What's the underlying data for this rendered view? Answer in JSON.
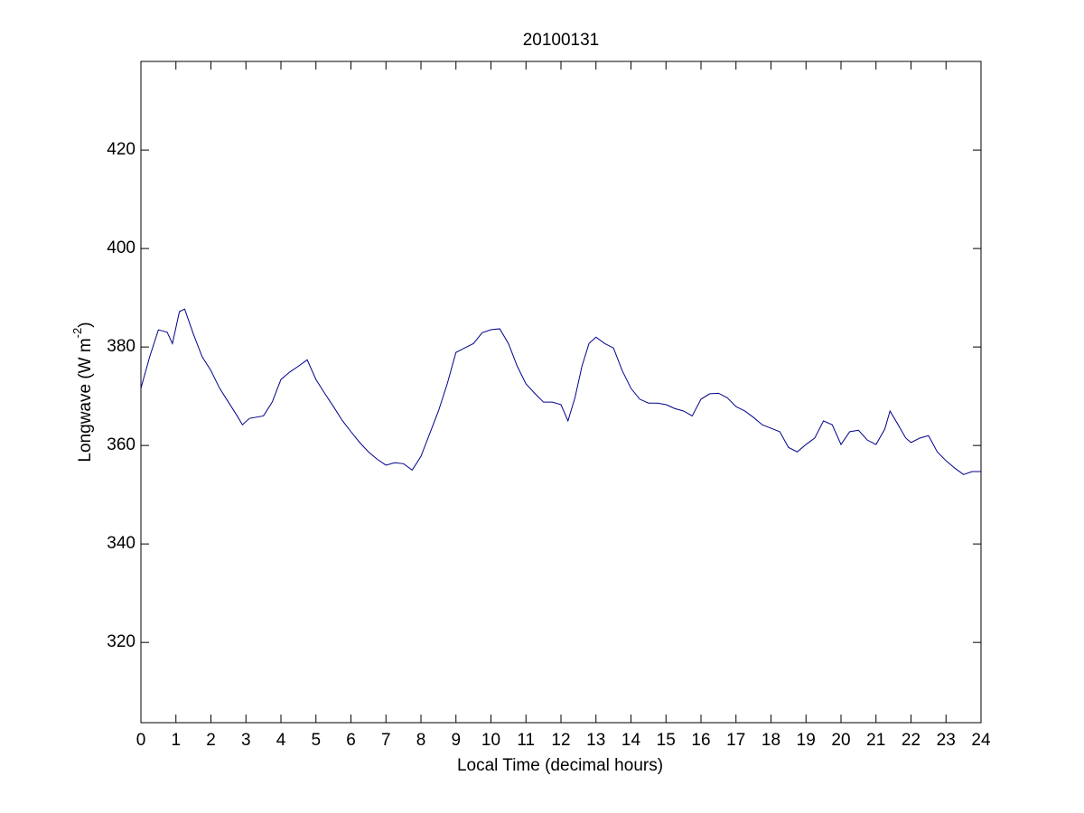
{
  "chart_data": {
    "type": "line",
    "title": "20100131",
    "xlabel": "Local Time (decimal hours)",
    "ylabel_parts": [
      "Longwave (W m",
      "-2",
      ")"
    ],
    "x": [
      0,
      0.25,
      0.5,
      0.75,
      0.9,
      1.1,
      1.25,
      1.5,
      1.75,
      2.0,
      2.25,
      2.5,
      2.75,
      2.9,
      3.1,
      3.5,
      3.75,
      4.0,
      4.25,
      4.5,
      4.75,
      5.0,
      5.25,
      5.5,
      5.75,
      6.0,
      6.25,
      6.5,
      6.75,
      7.0,
      7.25,
      7.5,
      7.75,
      8.0,
      8.25,
      8.5,
      8.75,
      9.0,
      9.25,
      9.5,
      9.75,
      10.0,
      10.25,
      10.5,
      10.75,
      11.0,
      11.25,
      11.5,
      11.75,
      12.0,
      12.2,
      12.4,
      12.6,
      12.8,
      13.0,
      13.25,
      13.5,
      13.75,
      14.0,
      14.25,
      14.5,
      14.75,
      15.0,
      15.25,
      15.5,
      15.75,
      16.0,
      16.25,
      16.5,
      16.75,
      17.0,
      17.25,
      17.5,
      17.75,
      18.0,
      18.25,
      18.5,
      18.75,
      19.0,
      19.25,
      19.5,
      19.75,
      20.0,
      20.25,
      20.5,
      20.75,
      21.0,
      21.25,
      21.4,
      21.6,
      21.85,
      22.0,
      22.25,
      22.5,
      22.75,
      23.0,
      23.25,
      23.5,
      23.75,
      24.0
    ],
    "series": [
      {
        "color": "#00008B",
        "values": [
          371.6,
          378,
          383.5,
          383,
          380.7,
          387.2,
          387.7,
          382.6,
          378,
          375.2,
          371.6,
          368.8,
          366,
          364.2,
          365.5,
          366,
          368.8,
          373.4,
          374.9,
          376.1,
          377.4,
          373.4,
          370.6,
          367.9,
          365.1,
          362.8,
          360.6,
          358.7,
          357.2,
          356,
          356.5,
          356.3,
          355,
          357.8,
          362.4,
          367,
          372.5,
          378.9,
          379.8,
          380.7,
          382.9,
          383.5,
          383.7,
          380.7,
          376.1,
          372.5,
          370.6,
          368.8,
          368.8,
          368.3,
          365,
          369.7,
          376.1,
          380.7,
          382,
          380.7,
          379.8,
          375.2,
          371.6,
          369.4,
          368.6,
          368.6,
          368.3,
          367.5,
          367,
          366,
          369.4,
          370.5,
          370.6,
          369.7,
          367.9,
          367,
          365.7,
          364.2,
          363.5,
          362.8,
          359.6,
          358.7,
          360.2,
          361.5,
          365,
          364.2,
          360.2,
          362.8,
          363.1,
          361.1,
          360.2,
          363.3,
          367,
          364.6,
          361.5,
          360.6,
          361.5,
          362,
          358.7,
          356.9,
          355.4,
          354.1,
          354.7,
          354.7
        ]
      }
    ],
    "xlim": [
      0,
      24
    ],
    "xticks": [
      0,
      1,
      2,
      3,
      4,
      5,
      6,
      7,
      8,
      9,
      10,
      11,
      12,
      13,
      14,
      15,
      16,
      17,
      18,
      19,
      20,
      21,
      22,
      23,
      24
    ],
    "ylim": [
      303.7,
      438
    ],
    "yticks": [
      320,
      340,
      360,
      380,
      400,
      420
    ],
    "grid": false
  }
}
